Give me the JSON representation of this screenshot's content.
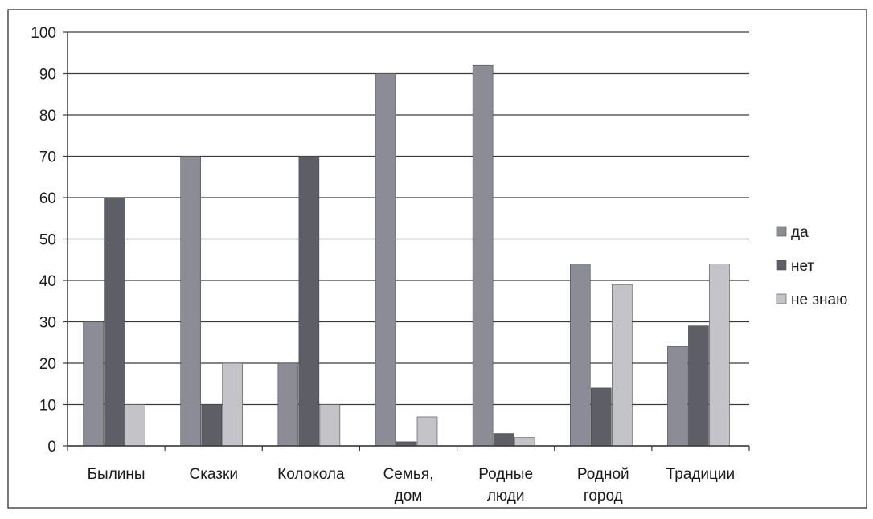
{
  "chart_data": {
    "type": "bar",
    "title": "",
    "xlabel": "",
    "ylabel": "",
    "ylim": [
      0,
      100
    ],
    "yticks": [
      0,
      10,
      20,
      30,
      40,
      50,
      60,
      70,
      80,
      90,
      100
    ],
    "grid": true,
    "legend_position": "right",
    "categories": [
      [
        "Былины"
      ],
      [
        "Сказки"
      ],
      [
        "Колокола"
      ],
      [
        "Семья,",
        "дом"
      ],
      [
        "Родные",
        "люди"
      ],
      [
        "Родной",
        "город"
      ],
      [
        "Традиции"
      ]
    ],
    "series": [
      {
        "name": "да",
        "color": "#8c8c96",
        "values": [
          30,
          70,
          20,
          90,
          92,
          44,
          24
        ]
      },
      {
        "name": "нет",
        "color": "#5e5e66",
        "values": [
          60,
          10,
          70,
          1,
          3,
          14,
          29
        ]
      },
      {
        "name": "не знаю",
        "color": "#c4c4c8",
        "values": [
          10,
          20,
          10,
          7,
          2,
          39,
          44
        ]
      }
    ]
  }
}
